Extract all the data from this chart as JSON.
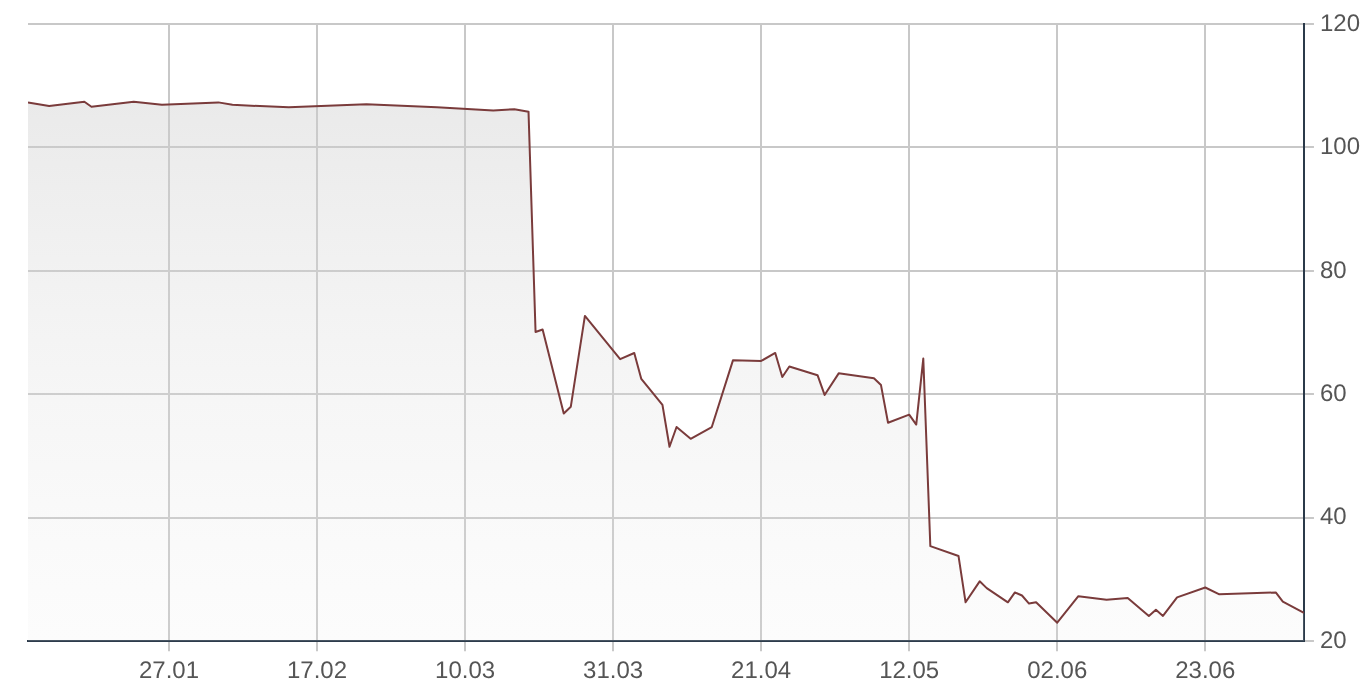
{
  "chart_data": {
    "type": "area",
    "x": [
      "--01-07",
      "--01-10",
      "--01-15",
      "--01-16",
      "--01-22",
      "--01-26",
      "--02-03",
      "--02-05",
      "--02-13",
      "--02-24",
      "--03-06",
      "--03-14",
      "--03-17",
      "--03-19",
      "--03-20",
      "--03-21",
      "--03-24",
      "--03-25",
      "--03-27",
      "--04-01",
      "--04-03",
      "--04-04",
      "--04-07",
      "--04-08",
      "--04-09",
      "--04-11",
      "--04-14",
      "--04-17",
      "--04-21",
      "--04-23",
      "--04-24",
      "--04-25",
      "--04-29",
      "--04-30",
      "--05-02",
      "--05-07",
      "--05-08",
      "--05-09",
      "--05-12",
      "--05-13",
      "--05-14",
      "--05-15",
      "--05-19",
      "--05-20",
      "--05-22",
      "--05-23",
      "--05-26",
      "--05-27",
      "--05-28",
      "--05-29",
      "--05-30",
      "--06-02",
      "--06-05",
      "--06-09",
      "--06-12",
      "--06-15",
      "--06-16",
      "--06-17",
      "--06-19",
      "--06-23",
      "--06-25",
      "--07-03",
      "--07-04",
      "--07-07"
    ],
    "series": [
      {
        "color": "#7a3b3b",
        "values": [
          107.3,
          106.7,
          107.4,
          106.6,
          107.4,
          106.9,
          107.3,
          106.9,
          106.5,
          107,
          106.5,
          106,
          106.2,
          105.8,
          70.1,
          70.5,
          56.9,
          58,
          72.7,
          65.7,
          66.7,
          62.5,
          58.3,
          51.5,
          54.7,
          52.8,
          54.7,
          65.5,
          65.4,
          66.7,
          62.8,
          64.5,
          63.1,
          59.9,
          63.4,
          62.6,
          61.5,
          55.4,
          56.7,
          55.1,
          65.8,
          35.4,
          33.8,
          26.3,
          29.7,
          28.6,
          26.3,
          27.9,
          27.4,
          26.1,
          26.3,
          23,
          27.3,
          26.7,
          27,
          24.1,
          25.1,
          24.1,
          27.1,
          28.7,
          27.6,
          27.9,
          26.4,
          24.6
        ]
      }
    ],
    "xlim": [
      "--01-07",
      "--07-07"
    ],
    "xticks": [
      {
        "value": "--01-27",
        "label": "27.01"
      },
      {
        "value": "--02-17",
        "label": "17.02"
      },
      {
        "value": "--03-10",
        "label": "10.03"
      },
      {
        "value": "--03-31",
        "label": "31.03"
      },
      {
        "value": "--04-21",
        "label": "21.04"
      },
      {
        "value": "--05-12",
        "label": "12.05"
      },
      {
        "value": "--06-02",
        "label": "02.06"
      },
      {
        "value": "--06-23",
        "label": "23.06"
      }
    ],
    "ylim": [
      20,
      120
    ],
    "yticks": [
      20,
      40,
      60,
      80,
      100,
      120
    ],
    "grid": true,
    "legend": false,
    "marker": "none",
    "line_style": "solid"
  }
}
